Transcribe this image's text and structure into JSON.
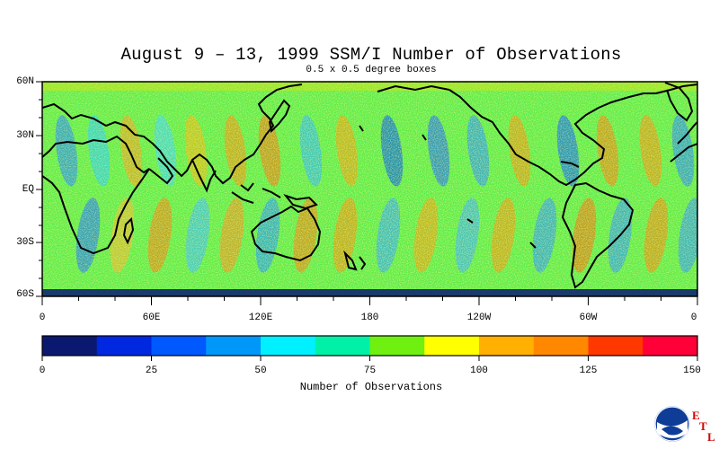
{
  "title": "August 9 – 13, 1999 SSM/I Number of Observations",
  "subtitle": "0.5 x 0.5 degree boxes",
  "lat_labels": [
    "60N",
    "30N",
    "EQ",
    "30S",
    "60S"
  ],
  "lon_labels": [
    "0",
    "60E",
    "120E",
    "180",
    "120W",
    "60W",
    "0"
  ],
  "colorbar": {
    "title": "Number of Observations",
    "tick_labels": [
      "0",
      "25",
      "50",
      "75",
      "100",
      "125",
      "150"
    ],
    "range": [
      0,
      150
    ],
    "colors": [
      "#0a1870",
      "#0028e0",
      "#0058ff",
      "#0098f8",
      "#00f0ff",
      "#00f0a8",
      "#70f010",
      "#ffff00",
      "#ffb000",
      "#ff8800",
      "#ff3800",
      "#ff0038"
    ]
  },
  "logo": {
    "name": "noaa-logo",
    "text": "NOAA",
    "lab_letters": [
      "E",
      "T",
      "L"
    ]
  }
}
